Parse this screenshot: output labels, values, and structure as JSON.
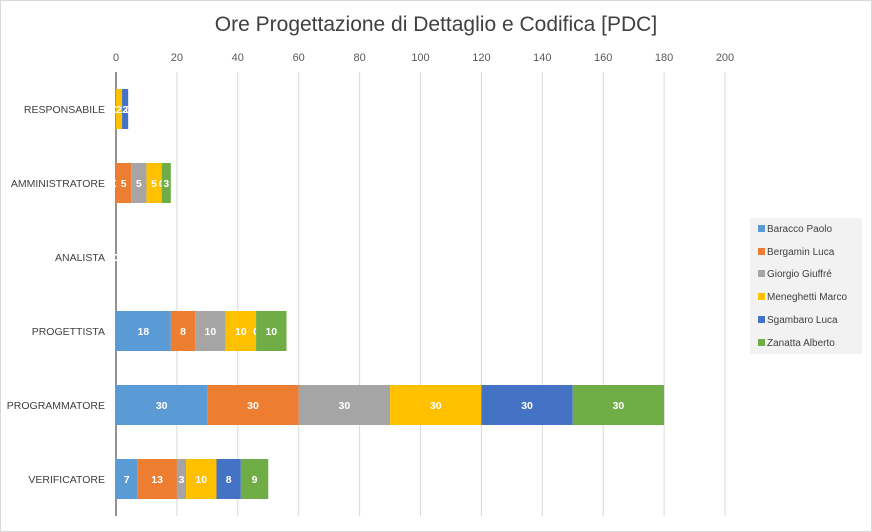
{
  "chart_data": {
    "type": "bar",
    "orientation": "horizontal",
    "stacked": true,
    "title": "Ore Progettazione di Dettaglio e Codifica [PDC]",
    "categories": [
      "RESPONSABILE",
      "AMMINISTRATORE",
      "ANALISTA",
      "PROGETTISTA",
      "PROGRAMMATORE",
      "VERIFICATORE"
    ],
    "series": [
      {
        "name": "Baracco Paolo",
        "color": "#5b9bd5",
        "values": [
          0,
          0,
          0,
          18,
          30,
          7
        ]
      },
      {
        "name": "Bergamin Luca",
        "color": "#ed7d31",
        "values": [
          0,
          5,
          0,
          8,
          30,
          13
        ]
      },
      {
        "name": "Giorgio Giuffré",
        "color": "#a5a5a5",
        "values": [
          0,
          5,
          0,
          10,
          30,
          3
        ]
      },
      {
        "name": "Meneghetti Marco",
        "color": "#ffc000",
        "values": [
          2,
          5,
          0,
          10,
          30,
          10
        ]
      },
      {
        "name": "Sgambaro Luca",
        "color": "#4472c4",
        "values": [
          2,
          0,
          0,
          0,
          30,
          8
        ]
      },
      {
        "name": "Zanatta Alberto",
        "color": "#70ad47",
        "values": [
          0,
          3,
          0,
          10,
          30,
          9
        ]
      }
    ],
    "xlim": [
      0,
      200
    ],
    "xticks": [
      0,
      20,
      40,
      60,
      80,
      100,
      120,
      140,
      160,
      180,
      200
    ],
    "grid": true,
    "legend_position": "right",
    "data_labels": true
  }
}
